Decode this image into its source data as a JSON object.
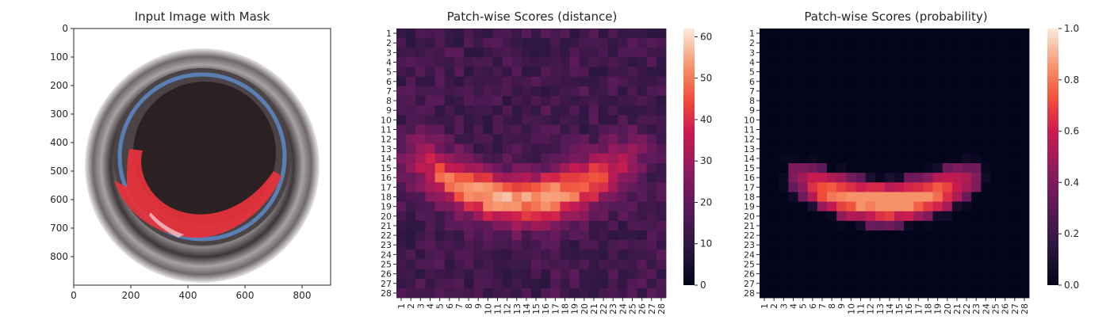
{
  "panels": [
    {
      "title": "Input Image with Mask"
    },
    {
      "title": "Patch-wise Scores (distance)"
    },
    {
      "title": "Patch-wise Scores (probability)"
    }
  ],
  "chart_data": [
    {
      "type": "image",
      "title": "Input Image with Mask",
      "xlim": [
        0,
        900
      ],
      "ylim": [
        900,
        0
      ],
      "xticks": [
        0,
        200,
        400,
        600,
        800
      ],
      "yticks": [
        0,
        100,
        200,
        300,
        400,
        500,
        600,
        700,
        800
      ],
      "description_colors": {
        "mask": "#e8323c",
        "ring_blue": "#5a7fb4",
        "background_dark": "#2b2123"
      }
    },
    {
      "type": "heatmap",
      "title": "Patch-wise Scores (distance)",
      "rows": 28,
      "cols": 28,
      "row_labels": [
        "1",
        "2",
        "3",
        "4",
        "5",
        "6",
        "7",
        "8",
        "9",
        "10",
        "11",
        "12",
        "13",
        "14",
        "15",
        "16",
        "17",
        "18",
        "19",
        "20",
        "21",
        "22",
        "23",
        "24",
        "25",
        "26",
        "27",
        "28"
      ],
      "col_labels": [
        "1",
        "2",
        "3",
        "4",
        "5",
        "6",
        "7",
        "8",
        "9",
        "10",
        "11",
        "12",
        "13",
        "14",
        "15",
        "16",
        "17",
        "18",
        "19",
        "20",
        "21",
        "22",
        "23",
        "24",
        "25",
        "26",
        "27",
        "28"
      ],
      "colorbar": {
        "min": 0,
        "max": 62,
        "ticks": [
          0,
          10,
          20,
          30,
          40,
          50,
          60
        ]
      },
      "colormap": "rocket",
      "pattern": {
        "background": 14,
        "arc_peak": 62,
        "arc_center": [
          6,
          13.5
        ],
        "arc_radius": 12.2,
        "arc_rows_min": 11
      }
    },
    {
      "type": "heatmap",
      "title": "Patch-wise Scores (probability)",
      "rows": 28,
      "cols": 28,
      "row_labels": [
        "1",
        "2",
        "3",
        "4",
        "5",
        "6",
        "7",
        "8",
        "9",
        "10",
        "11",
        "12",
        "13",
        "14",
        "15",
        "16",
        "17",
        "18",
        "19",
        "20",
        "21",
        "22",
        "23",
        "24",
        "25",
        "26",
        "27",
        "28"
      ],
      "col_labels": [
        "1",
        "2",
        "3",
        "4",
        "5",
        "6",
        "7",
        "8",
        "9",
        "10",
        "11",
        "12",
        "13",
        "14",
        "15",
        "16",
        "17",
        "18",
        "19",
        "20",
        "21",
        "22",
        "23",
        "24",
        "25",
        "26",
        "27",
        "28"
      ],
      "colorbar": {
        "min": 0.0,
        "max": 1.0,
        "ticks": [
          "0.0",
          "0.2",
          "0.4",
          "0.6",
          "0.8",
          "1.0"
        ]
      },
      "colormap": "rocket",
      "pattern": {
        "background": 0.0,
        "arc_peak": 0.85,
        "arc_center": [
          6,
          13.5
        ],
        "arc_radius": 12.2,
        "arc_rows_min": 13
      }
    }
  ]
}
